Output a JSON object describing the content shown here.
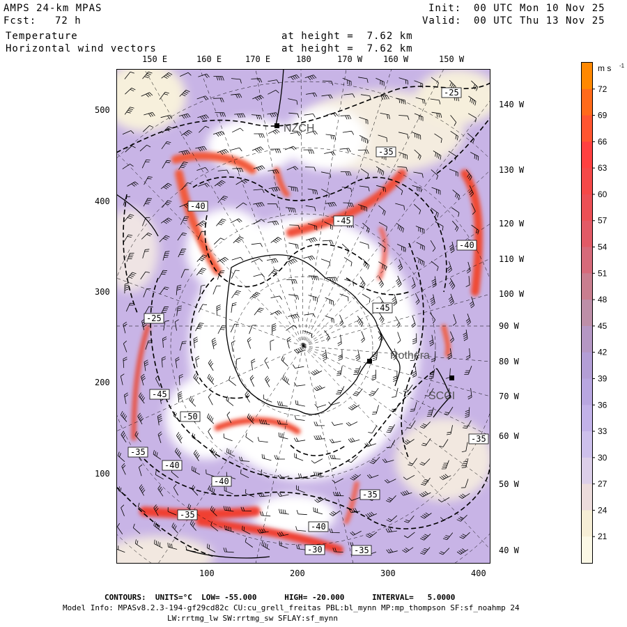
{
  "header": {
    "model": "AMPS 24-km MPAS",
    "fcst_label": "Fcst:",
    "fcst_value": "72 h",
    "init_label": "Init:",
    "init_value": "00 UTC Mon 10 Nov 25",
    "valid_label": "Valid:",
    "valid_value": "00 UTC Thu 13 Nov 25",
    "field1": "Temperature",
    "field2": "Horizontal wind vectors",
    "height1": "at height =  7.62 km",
    "height2": "at height =  7.62 km"
  },
  "top_labels": [
    "150 E",
    "160 E",
    "170 E",
    "180",
    "170 W",
    "160 W",
    "150 W"
  ],
  "right_labels": [
    "140 W",
    "130 W",
    "120 W",
    "110 W",
    "100 W",
    "90 W",
    "80 W",
    "70 W",
    "60 W",
    "50 W",
    "40 W"
  ],
  "left_ticks": [
    "500",
    "400",
    "300",
    "200",
    "100"
  ],
  "bottom_ticks": [
    "100",
    "200",
    "300",
    "400"
  ],
  "stations": [
    {
      "name": "NZCH"
    },
    {
      "name": "Rothera"
    },
    {
      "name": "SCCI"
    }
  ],
  "contour_labels": [
    "-25",
    "-35",
    "-40",
    "-45",
    "-40",
    "-45",
    "-25",
    "-45",
    "-35",
    "-50",
    "-35",
    "-40",
    "-40",
    "-35",
    "-35",
    "-40",
    "-30",
    "-35"
  ],
  "colorbar": {
    "unit": "m s",
    "unit_exp": "-1",
    "labels": [
      "72",
      "69",
      "66",
      "63",
      "60",
      "57",
      "54",
      "51",
      "48",
      "45",
      "42",
      "39",
      "36",
      "33",
      "30",
      "27",
      "24",
      "21"
    ],
    "colors": [
      "#ff8800",
      "#ff6a1a",
      "#ff5530",
      "#ff4040",
      "#f54848",
      "#ec4f55",
      "#e25a66",
      "#d66a7a",
      "#c97e8f",
      "#bd8fa8",
      "#b597c4",
      "#b39ed6",
      "#b8a6e0",
      "#c2b2e8",
      "#cdc0ec",
      "#dccfe9",
      "#ecdcdc",
      "#f6eed6",
      "#fbf8e6"
    ]
  },
  "footer": {
    "contours": "CONTOURS:  UNITS=°C  LOW= -55.000      HIGH= -20.000      INTERVAL=   5.0000",
    "model_info": "Model Info: MPASv8.2.3-194-gf29cd82c CU:cu_grell_freitas PBL:bl_mynn MP:mp_thompson SF:sf_noahmp 24",
    "model_info2": "LW:rrtmg_lw SW:rrtmg_sw SFLAY:sf_mynn"
  }
}
